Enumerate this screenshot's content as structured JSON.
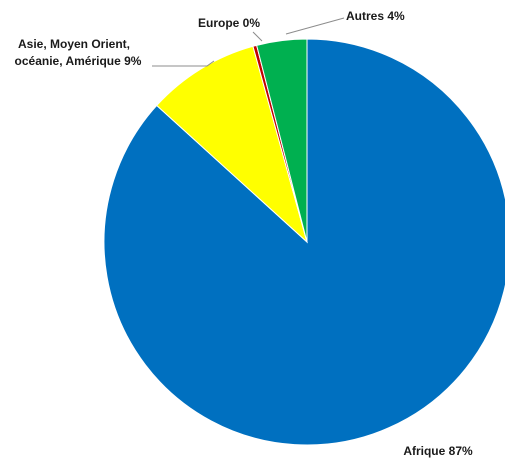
{
  "chart_data": {
    "type": "pie",
    "start_angle": "12 o'clock",
    "direction": "clockwise",
    "legend": "none (data labels with leader lines)",
    "slices": [
      {
        "label": "Afrique",
        "value": 87,
        "display": "87%",
        "color": "#0070C0"
      },
      {
        "label": "Asie, Moyen Orient, océanie, Amérique",
        "value": 9,
        "display": "9%",
        "color": "#FFFF00"
      },
      {
        "label": "Europe",
        "value": 0.3,
        "display": "0%",
        "color": "#C00000"
      },
      {
        "label": "Autres",
        "value": 4,
        "display": "4%",
        "color": "#00B050"
      }
    ]
  },
  "labels": {
    "afrique": "Afrique 87%",
    "asie_line1": "Asie, Moyen Orient,",
    "asie_line2": "océanie, Amérique 9%",
    "europe": "Europe 0%",
    "autres": "Autres 4%"
  }
}
